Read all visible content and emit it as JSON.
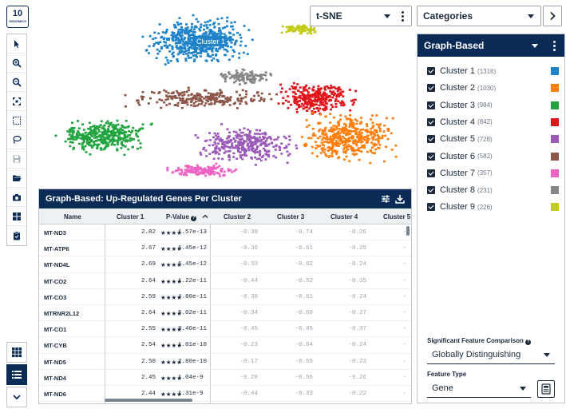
{
  "app": {
    "logo_top": "10",
    "logo_bottom": "GENOMICS"
  },
  "toolbar": {
    "tools": [
      "pointer-icon",
      "zoom-in-icon",
      "zoom-out-icon",
      "fit-icon",
      "box-select-icon",
      "lasso-icon",
      "save-icon",
      "folder-icon",
      "camera-icon",
      "layout-icon",
      "clipboard-icon"
    ],
    "bottom": [
      "grid-view-icon",
      "list-view-icon",
      "chevron-down-icon"
    ]
  },
  "projection": {
    "value": "t-SNE"
  },
  "categories": {
    "value": "Categories"
  },
  "scatter": {
    "hover_label": "Cluster 1",
    "colors": [
      "#1f83c9",
      "#ff7f0e",
      "#22a541",
      "#e2141b",
      "#9b5ab8",
      "#8b5548",
      "#ee62c4",
      "#868686",
      "#c2cc16"
    ]
  },
  "panel": {
    "title": "Graph-Based",
    "clusters": [
      {
        "label": "Cluster 1",
        "count": "(1316)",
        "color": "#1f83c9"
      },
      {
        "label": "Cluster 2",
        "count": "(1030)",
        "color": "#ff7f0e"
      },
      {
        "label": "Cluster 3",
        "count": "(984)",
        "color": "#22a541"
      },
      {
        "label": "Cluster 4",
        "count": "(842)",
        "color": "#e2141b"
      },
      {
        "label": "Cluster 5",
        "count": "(728)",
        "color": "#9b5ab8"
      },
      {
        "label": "Cluster 6",
        "count": "(582)",
        "color": "#8b5548"
      },
      {
        "label": "Cluster 7",
        "count": "(357)",
        "color": "#ee62c4"
      },
      {
        "label": "Cluster 8",
        "count": "(231)",
        "color": "#868686"
      },
      {
        "label": "Cluster 9",
        "count": "(226)",
        "color": "#c2cc16"
      }
    ],
    "comparison_label": "Significant Feature Comparison",
    "comparison_value": "Globally Distinguishing",
    "feature_label": "Feature Type",
    "feature_value": "Gene"
  },
  "table": {
    "title": "Graph-Based: Up-Regulated Genes Per Cluster",
    "headers": {
      "name": "Name",
      "c1": "Cluster 1",
      "pvalue": "P-Value",
      "c2": "Cluster 2",
      "c3": "Cluster 3",
      "c4": "Cluster 4",
      "c5": "Cluster 5"
    },
    "rows": [
      {
        "name": "MT-ND3",
        "c1": "2.82",
        "stars": "★★★★",
        "pvalue": "1.57e-13",
        "c2": "-0.30",
        "c3": "-0.74",
        "c4": "-0.26",
        "c5": "-"
      },
      {
        "name": "MT-ATP6",
        "c1": "2.67",
        "stars": "★★★★",
        "pvalue": "6.45e-12",
        "c2": "-0.36",
        "c3": "-0.61",
        "c4": "-0.29",
        "c5": "-"
      },
      {
        "name": "MT-ND4L",
        "c1": "2.69",
        "stars": "★★★★",
        "pvalue": "6.45e-12",
        "c2": "-0.33",
        "c3": "-0.62",
        "c4": "-0.24",
        "c5": "-"
      },
      {
        "name": "MT-CO2",
        "c1": "2.64",
        "stars": "★★★★",
        "pvalue": "1.22e-11",
        "c2": "-0.44",
        "c3": "-0.52",
        "c4": "-0.35",
        "c5": "-"
      },
      {
        "name": "MT-CO3",
        "c1": "2.59",
        "stars": "★★★★",
        "pvalue": "4.80e-11",
        "c2": "-0.30",
        "c3": "-0.61",
        "c4": "-0.24",
        "c5": "-"
      },
      {
        "name": "MTRNR2L12",
        "c1": "2.64",
        "stars": "★★★★",
        "pvalue": "5.02e-11",
        "c2": "-0.34",
        "c3": "-0.60",
        "c4": "-0.27",
        "c5": "-"
      },
      {
        "name": "MT-CO1",
        "c1": "2.55",
        "stars": "★★★★",
        "pvalue": "8.46e-11",
        "c2": "-0.45",
        "c3": "-0.45",
        "c4": "-0.37",
        "c5": "-"
      },
      {
        "name": "MT-CYB",
        "c1": "2.54",
        "stars": "★★★★",
        "pvalue": "1.01e-10",
        "c2": "-0.23",
        "c3": "-0.64",
        "c4": "-0.24",
        "c5": "-"
      },
      {
        "name": "MT-ND5",
        "c1": "2.50",
        "stars": "★★★★",
        "pvalue": "2.80e-10",
        "c2": "-0.17",
        "c3": "-0.65",
        "c4": "-0.23",
        "c5": "-"
      },
      {
        "name": "MT-ND4",
        "c1": "2.45",
        "stars": "★★★★",
        "pvalue": "1.04e-9",
        "c2": "-0.28",
        "c3": "-0.56",
        "c4": "-0.26",
        "c5": "-"
      },
      {
        "name": "MT-ND6",
        "c1": "2.44",
        "stars": "★★★★",
        "pvalue": "1.31e-9",
        "c2": "-0.44",
        "c3": "-0.33",
        "c4": "-0.22",
        "c5": "-"
      }
    ]
  }
}
